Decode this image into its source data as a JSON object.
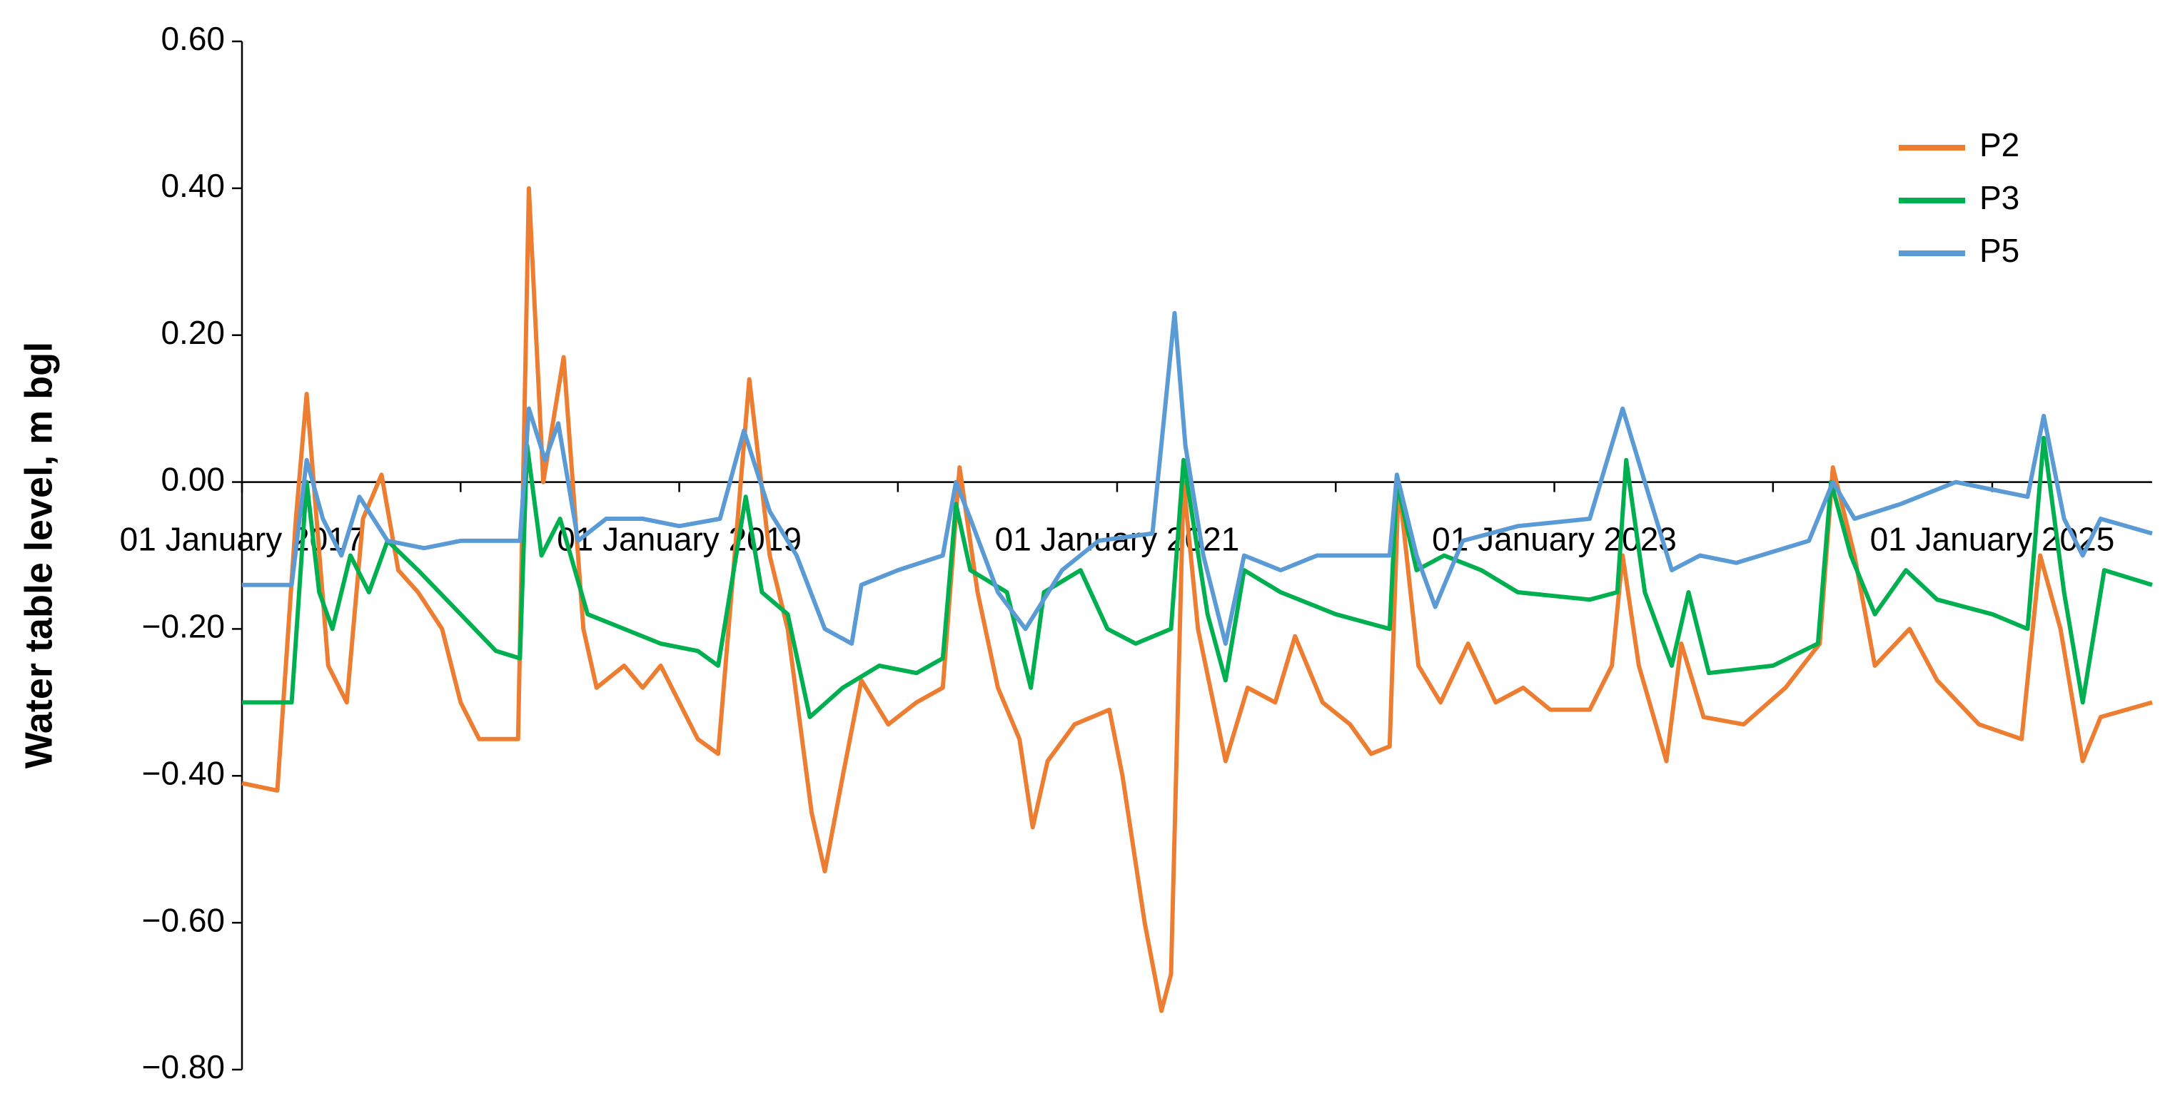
{
  "chart_data": {
    "type": "line",
    "y_label": "Water table level, m bgl",
    "xlim": [
      "2017-01-01",
      "2025-09-25"
    ],
    "xticks": [
      {
        "value": "2017-01-01",
        "label": "01 January 2017"
      },
      {
        "value": "2018-01-01",
        "label": null
      },
      {
        "value": "2019-01-01",
        "label": "01 January 2019"
      },
      {
        "value": "2020-01-01",
        "label": null
      },
      {
        "value": "2021-01-01",
        "label": "01 January 2021"
      },
      {
        "value": "2022-01-01",
        "label": null
      },
      {
        "value": "2023-01-01",
        "label": "01 January 2023"
      },
      {
        "value": "2024-01-01",
        "label": null
      },
      {
        "value": "2025-01-01",
        "label": "01 January 2025"
      }
    ],
    "ylim": [
      -0.8,
      0.6
    ],
    "yticks": [
      {
        "value": 0.6,
        "label": "0.60"
      },
      {
        "value": 0.4,
        "label": "0.40"
      },
      {
        "value": 0.2,
        "label": "0.20"
      },
      {
        "value": 0,
        "label": "0.00"
      },
      {
        "value": -0.2,
        "label": "−0.20"
      },
      {
        "value": -0.4,
        "label": "−0.40"
      },
      {
        "value": -0.6,
        "label": "−0.60"
      },
      {
        "value": -0.8,
        "label": "−0.80"
      }
    ],
    "grid": false,
    "legend": "upper-right",
    "series": [
      {
        "name": "P2",
        "color": "#ed7d31",
        "x": [
          "2017-01-01",
          "2017-03-01",
          "2017-04-01",
          "2017-04-19",
          "2017-05-25",
          "2017-06-25",
          "2017-07-22",
          "2017-08-22",
          "2017-09-19",
          "2017-10-22",
          "2017-12-01",
          "2018-01-01",
          "2018-02-01",
          "2018-04-07",
          "2018-04-25",
          "2018-05-19",
          "2018-06-22",
          "2018-07-25",
          "2018-08-16",
          "2018-10-01",
          "2018-11-01",
          "2018-12-01",
          "2019-01-01",
          "2019-02-01",
          "2019-03-07",
          "2019-04-28",
          "2019-06-01",
          "2019-07-01",
          "2019-08-10",
          "2019-09-01",
          "2019-10-01",
          "2019-11-01",
          "2019-12-16",
          "2020-02-01",
          "2020-03-16",
          "2020-04-13",
          "2020-05-13",
          "2020-06-16",
          "2020-07-22",
          "2020-08-13",
          "2020-09-07",
          "2020-10-22",
          "2020-12-19",
          "2021-01-10",
          "2021-02-16",
          "2021-03-16",
          "2021-04-01",
          "2021-04-22",
          "2021-05-16",
          "2021-07-01",
          "2021-08-07",
          "2021-09-22",
          "2021-10-25",
          "2021-12-10",
          "2022-01-25",
          "2022-03-01",
          "2022-04-01",
          "2022-04-16",
          "2022-05-19",
          "2022-06-25",
          "2022-08-10",
          "2022-09-25",
          "2022-11-10",
          "2022-12-25",
          "2023-03-01",
          "2023-04-07",
          "2023-04-25",
          "2023-05-22",
          "2023-07-07",
          "2023-08-01",
          "2023-09-07",
          "2023-11-13",
          "2024-01-22",
          "2024-03-19",
          "2024-04-10",
          "2024-05-16",
          "2024-06-19",
          "2024-08-16",
          "2024-10-01",
          "2024-12-10",
          "2025-02-19",
          "2025-03-22",
          "2025-04-25",
          "2025-06-01",
          "2025-07-01",
          "2025-09-25"
        ],
        "values": [
          -0.41,
          -0.42,
          -0.05,
          0.12,
          -0.25,
          -0.3,
          -0.05,
          0.01,
          -0.12,
          -0.15,
          -0.2,
          -0.3,
          -0.35,
          -0.35,
          0.4,
          0.0,
          0.17,
          -0.2,
          -0.28,
          -0.25,
          -0.28,
          -0.25,
          -0.3,
          -0.35,
          -0.37,
          0.14,
          -0.1,
          -0.2,
          -0.45,
          -0.53,
          -0.4,
          -0.27,
          -0.33,
          -0.3,
          -0.28,
          0.02,
          -0.15,
          -0.28,
          -0.35,
          -0.47,
          -0.38,
          -0.33,
          -0.31,
          -0.4,
          -0.6,
          -0.72,
          -0.67,
          0.0,
          -0.2,
          -0.38,
          -0.28,
          -0.3,
          -0.21,
          -0.3,
          -0.33,
          -0.37,
          -0.36,
          0.0,
          -0.25,
          -0.3,
          -0.22,
          -0.3,
          -0.28,
          -0.31,
          -0.31,
          -0.25,
          -0.1,
          -0.25,
          -0.38,
          -0.22,
          -0.32,
          -0.33,
          -0.28,
          -0.22,
          0.02,
          -0.1,
          -0.25,
          -0.2,
          -0.27,
          -0.33,
          -0.35,
          -0.1,
          -0.2,
          -0.38,
          -0.32,
          -0.3
        ]
      },
      {
        "name": "P3",
        "color": "#00b050",
        "x": [
          "2017-01-01",
          "2017-03-25",
          "2017-04-19",
          "2017-05-10",
          "2017-06-01",
          "2017-07-01",
          "2017-08-01",
          "2017-09-01",
          "2017-10-22",
          "2018-01-01",
          "2018-03-01",
          "2018-04-10",
          "2018-04-22",
          "2018-05-16",
          "2018-06-16",
          "2018-08-01",
          "2018-10-01",
          "2018-12-01",
          "2019-02-01",
          "2019-03-07",
          "2019-04-22",
          "2019-05-19",
          "2019-07-01",
          "2019-08-07",
          "2019-10-01",
          "2019-12-01",
          "2020-02-01",
          "2020-03-16",
          "2020-04-07",
          "2020-05-01",
          "2020-07-01",
          "2020-08-10",
          "2020-09-01",
          "2020-11-01",
          "2020-12-16",
          "2021-02-01",
          "2021-04-01",
          "2021-04-22",
          "2021-06-01",
          "2021-07-01",
          "2021-08-01",
          "2021-10-01",
          "2022-01-01",
          "2022-04-01",
          "2022-04-13",
          "2022-05-16",
          "2022-07-01",
          "2022-09-01",
          "2022-11-01",
          "2023-03-01",
          "2023-04-16",
          "2023-05-01",
          "2023-06-01",
          "2023-07-16",
          "2023-08-13",
          "2023-09-16",
          "2024-01-01",
          "2024-03-16",
          "2024-04-07",
          "2024-05-10",
          "2024-06-19",
          "2024-08-10",
          "2024-10-01",
          "2025-01-01",
          "2025-03-01",
          "2025-03-28",
          "2025-05-01",
          "2025-06-01",
          "2025-07-07",
          "2025-09-25"
        ],
        "values": [
          -0.3,
          -0.3,
          0.0,
          -0.15,
          -0.2,
          -0.1,
          -0.15,
          -0.08,
          -0.12,
          -0.18,
          -0.23,
          -0.24,
          0.05,
          -0.1,
          -0.05,
          -0.18,
          -0.2,
          -0.22,
          -0.23,
          -0.25,
          -0.02,
          -0.15,
          -0.18,
          -0.32,
          -0.28,
          -0.25,
          -0.26,
          -0.24,
          -0.03,
          -0.12,
          -0.15,
          -0.28,
          -0.15,
          -0.12,
          -0.2,
          -0.22,
          -0.2,
          0.03,
          -0.18,
          -0.27,
          -0.12,
          -0.15,
          -0.18,
          -0.2,
          0.0,
          -0.12,
          -0.1,
          -0.12,
          -0.15,
          -0.16,
          -0.15,
          0.03,
          -0.15,
          -0.25,
          -0.15,
          -0.26,
          -0.25,
          -0.22,
          0.0,
          -0.1,
          -0.18,
          -0.12,
          -0.16,
          -0.18,
          -0.2,
          0.06,
          -0.15,
          -0.3,
          -0.12,
          -0.14
        ]
      },
      {
        "name": "P5",
        "color": "#5b9bd5",
        "x": [
          "2017-01-01",
          "2017-03-25",
          "2017-04-19",
          "2017-05-16",
          "2017-06-16",
          "2017-07-16",
          "2017-09-01",
          "2017-11-01",
          "2018-01-01",
          "2018-04-10",
          "2018-04-25",
          "2018-05-22",
          "2018-06-13",
          "2018-07-16",
          "2018-09-01",
          "2018-11-01",
          "2019-01-01",
          "2019-03-10",
          "2019-04-19",
          "2019-06-01",
          "2019-07-16",
          "2019-09-01",
          "2019-10-16",
          "2019-11-01",
          "2020-01-01",
          "2020-03-16",
          "2020-04-07",
          "2020-05-01",
          "2020-06-16",
          "2020-08-01",
          "2020-10-01",
          "2020-12-01",
          "2021-03-01",
          "2021-04-07",
          "2021-04-25",
          "2021-05-25",
          "2021-07-01",
          "2021-08-01",
          "2021-10-01",
          "2021-12-01",
          "2022-04-01",
          "2022-04-13",
          "2022-05-16",
          "2022-06-16",
          "2022-08-01",
          "2022-11-01",
          "2023-03-01",
          "2023-04-25",
          "2023-06-01",
          "2023-07-16",
          "2023-09-01",
          "2023-11-01",
          "2024-03-01",
          "2024-04-10",
          "2024-05-16",
          "2024-08-01",
          "2024-11-01",
          "2025-03-01",
          "2025-03-28",
          "2025-05-01",
          "2025-06-01",
          "2025-07-01",
          "2025-09-25"
        ],
        "values": [
          -0.14,
          -0.14,
          0.03,
          -0.05,
          -0.1,
          -0.02,
          -0.08,
          -0.09,
          -0.08,
          -0.08,
          0.1,
          0.03,
          0.08,
          -0.08,
          -0.05,
          -0.05,
          -0.06,
          -0.05,
          0.07,
          -0.04,
          -0.1,
          -0.2,
          -0.22,
          -0.14,
          -0.12,
          -0.1,
          0.0,
          -0.05,
          -0.15,
          -0.2,
          -0.12,
          -0.08,
          -0.07,
          0.23,
          0.05,
          -0.1,
          -0.22,
          -0.1,
          -0.12,
          -0.1,
          -0.1,
          0.01,
          -0.1,
          -0.17,
          -0.08,
          -0.06,
          -0.05,
          0.1,
          0.0,
          -0.12,
          -0.1,
          -0.11,
          -0.08,
          0.0,
          -0.05,
          -0.03,
          0.0,
          -0.02,
          0.09,
          -0.05,
          -0.1,
          -0.05,
          -0.07
        ]
      }
    ]
  }
}
